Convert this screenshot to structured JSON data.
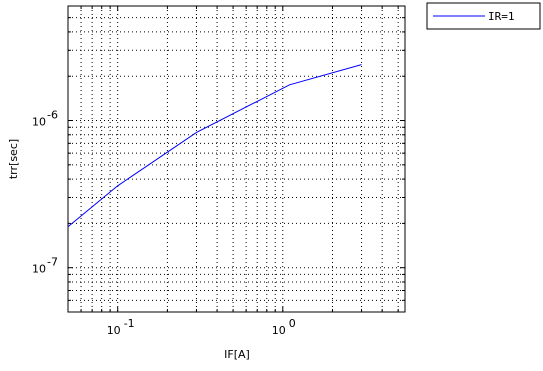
{
  "chart_data": {
    "type": "line",
    "xlabel": "IF[A]",
    "ylabel": "trr[sec]",
    "xscale": "log",
    "yscale": "log",
    "xlim": [
      0.05,
      5.5
    ],
    "ylim": [
      5e-08,
      6e-06
    ],
    "grid": true,
    "grid_style": "dotted",
    "legend_placement": "outside-top-right",
    "x_ticks": [
      {
        "value": 0.1,
        "base": "10",
        "exp": "-1"
      },
      {
        "value": 1,
        "base": "10",
        "exp": "0"
      }
    ],
    "y_ticks": [
      {
        "value": 1e-07,
        "base": "10",
        "exp": "-7"
      },
      {
        "value": 1e-06,
        "base": "10",
        "exp": "-6"
      }
    ],
    "series": [
      {
        "name": "IR=1",
        "color": "#0000ff",
        "x": [
          0.05,
          0.1,
          0.3,
          1.1,
          3.0
        ],
        "y": [
          1.9e-07,
          3.6e-07,
          8.3e-07,
          1.75e-06,
          2.4e-06
        ]
      }
    ]
  }
}
